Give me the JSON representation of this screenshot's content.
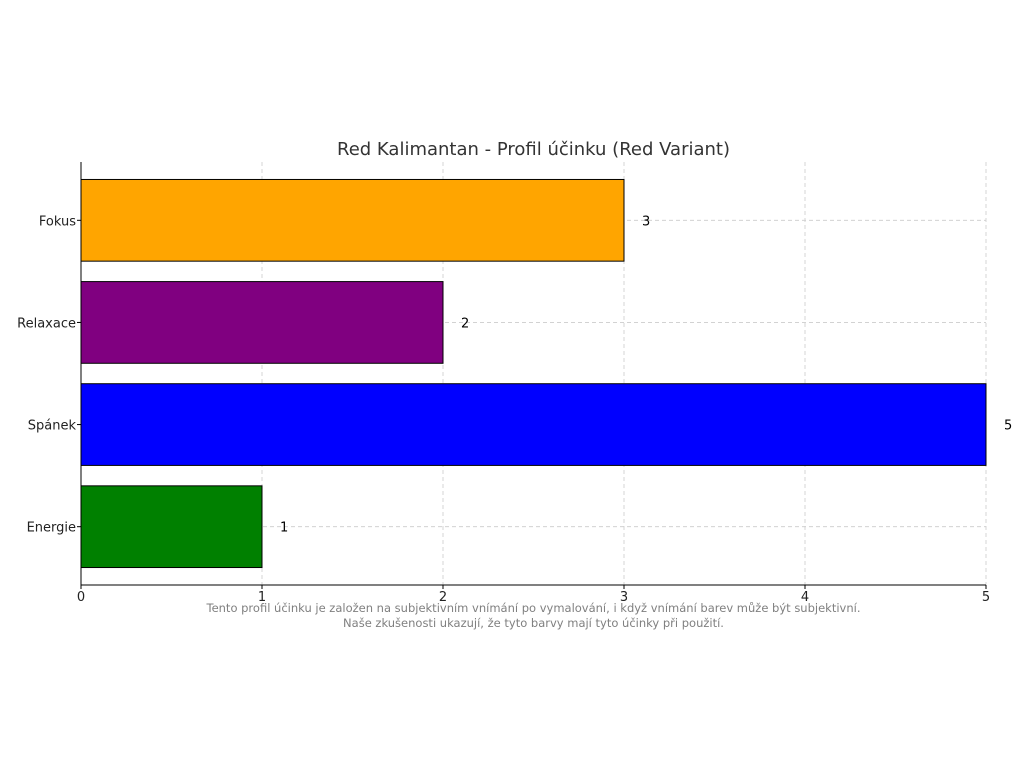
{
  "chart_data": {
    "type": "bar",
    "orientation": "horizontal",
    "title": "Red Kalimantan - Profil účinku (Red Variant)",
    "categories": [
      "Fokus",
      "Relaxace",
      "Spánek",
      "Energie"
    ],
    "values": [
      3,
      2,
      5,
      1
    ],
    "colors": [
      "#FFA500",
      "#800080",
      "#0000FF",
      "#008000"
    ],
    "edge_color": "#000000",
    "xlim": [
      0,
      5
    ],
    "xticks": [
      0,
      1,
      2,
      3,
      4,
      5
    ],
    "grid": true,
    "xlabel": "",
    "ylabel": ""
  },
  "footnote": {
    "line1": "Tento profil účinku je založen na subjektivním vnímání po vymalování, i když vnímání barev může být subjektivní.",
    "line2": "Naše zkušenosti ukazují, že tyto barvy mají tyto účinky při použití."
  }
}
